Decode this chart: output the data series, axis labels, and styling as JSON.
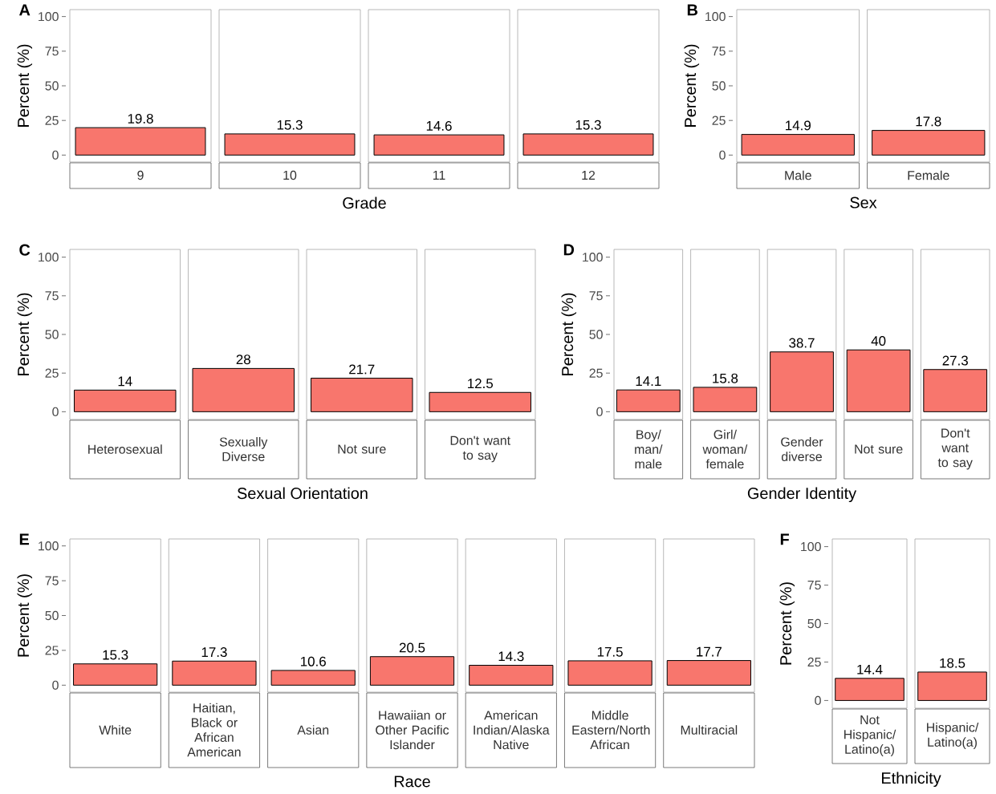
{
  "chart_data": [
    {
      "type": "bar",
      "title": "A",
      "xlabel": "Grade",
      "ylabel": "Percent (%)",
      "categories": [
        "9",
        "10",
        "11",
        "12"
      ],
      "values": [
        19.8,
        15.3,
        14.6,
        15.3
      ],
      "color": "#f8766d",
      "ylim": [
        -5,
        105
      ],
      "yticks": [
        0,
        25,
        50,
        75,
        100
      ],
      "data_labels": true,
      "grid": false
    },
    {
      "type": "bar",
      "title": "B",
      "xlabel": "Sex",
      "ylabel": "Percent (%)",
      "categories": [
        "Male",
        "Female"
      ],
      "values": [
        14.9,
        17.8
      ],
      "color": "#f8766d",
      "ylim": [
        -5,
        105
      ],
      "yticks": [
        0,
        25,
        50,
        75,
        100
      ],
      "data_labels": true,
      "grid": false
    },
    {
      "type": "bar",
      "title": "C",
      "xlabel": "Sexual Orientation",
      "ylabel": "Percent (%)",
      "categories": [
        "Heterosexual",
        "Sexually Diverse",
        "Not sure",
        "Don't want to say"
      ],
      "values": [
        14,
        28,
        21.7,
        12.5
      ],
      "color": "#f8766d",
      "ylim": [
        -5,
        105
      ],
      "yticks": [
        0,
        25,
        50,
        75,
        100
      ],
      "data_labels": true,
      "grid": false
    },
    {
      "type": "bar",
      "title": "D",
      "xlabel": "Gender Identity",
      "ylabel": "Percent (%)",
      "categories": [
        "Boy/ man/ male",
        "Girl/ woman/ female",
        "Gender diverse",
        "Not sure",
        "Don't want to say"
      ],
      "values": [
        14.1,
        15.8,
        38.7,
        40,
        27.3
      ],
      "color": "#f8766d",
      "ylim": [
        -5,
        105
      ],
      "yticks": [
        0,
        25,
        50,
        75,
        100
      ],
      "data_labels": true,
      "grid": false
    },
    {
      "type": "bar",
      "title": "E",
      "xlabel": "Race",
      "ylabel": "Percent (%)",
      "categories": [
        "White",
        "Haitian, Black or African American",
        "Asian",
        "Hawaiian or Other Pacific Islander",
        "American Indian/Alaska Native",
        "Middle Eastern/North African",
        "Multiracial"
      ],
      "values": [
        15.3,
        17.3,
        10.6,
        20.5,
        14.3,
        17.5,
        17.7
      ],
      "color": "#f8766d",
      "ylim": [
        -5,
        105
      ],
      "yticks": [
        0,
        25,
        50,
        75,
        100
      ],
      "data_labels": true,
      "grid": false
    },
    {
      "type": "bar",
      "title": "F",
      "xlabel": "Ethnicity",
      "ylabel": "Percent (%)",
      "categories": [
        "Not Hispanic/ Latino(a)",
        "Hispanic/ Latino(a)"
      ],
      "values": [
        14.4,
        18.5
      ],
      "color": "#f8766d",
      "ylim": [
        -5,
        105
      ],
      "yticks": [
        0,
        25,
        50,
        75,
        100
      ],
      "data_labels": true,
      "grid": false
    }
  ]
}
